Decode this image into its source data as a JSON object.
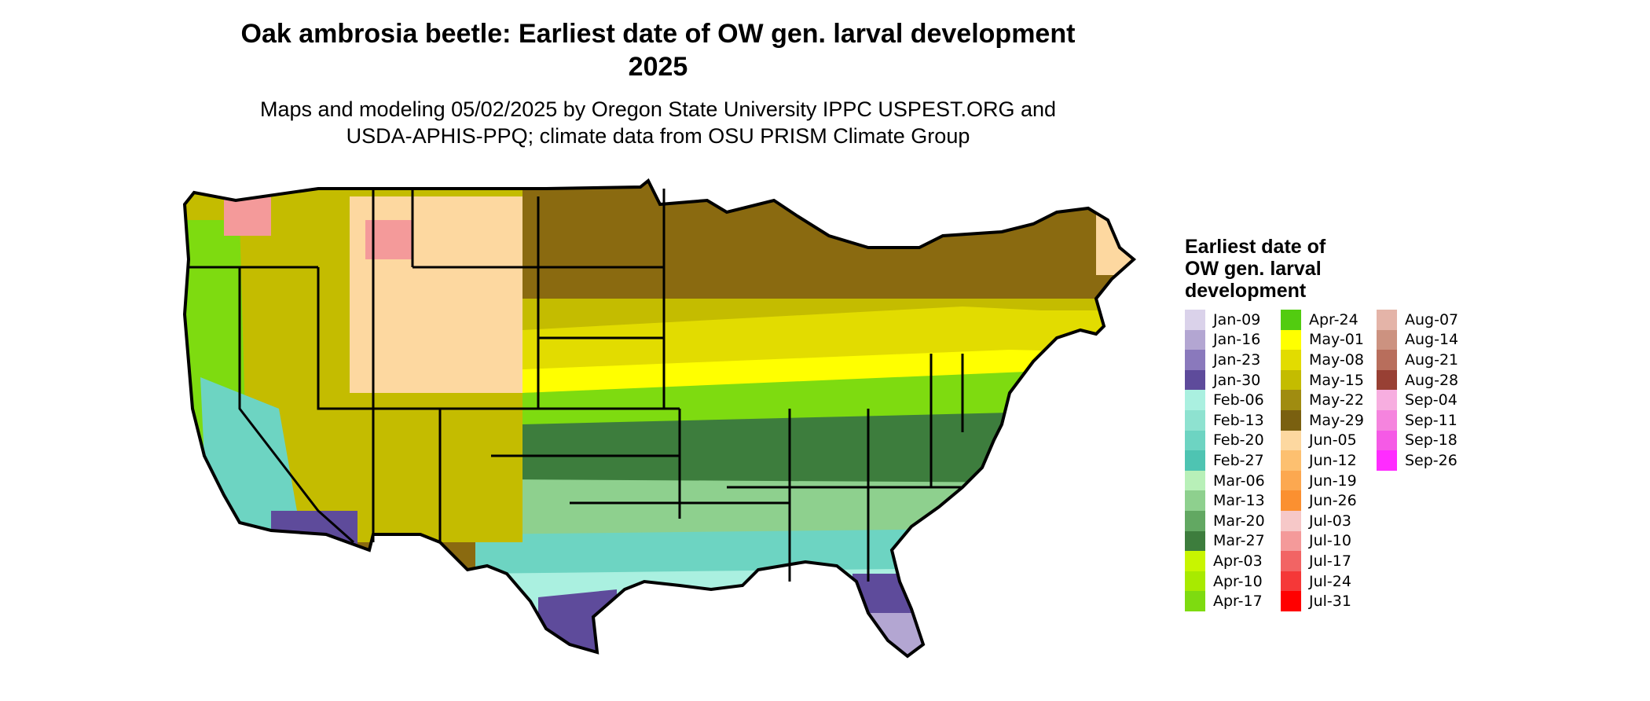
{
  "title_line1": "Oak ambrosia beetle: Earliest date of OW gen. larval development",
  "title_line2": "2025",
  "subtitle_line1": "Maps and modeling 05/02/2025 by Oregon State University IPPC USPEST.ORG and",
  "subtitle_line2": "USDA-APHIS-PPQ; climate data from OSU PRISM Climate Group",
  "legend": {
    "title": "Earliest date of OW gen. larval development",
    "items": [
      {
        "label": "Jan-09",
        "color": "#dad2ea"
      },
      {
        "label": "Jan-16",
        "color": "#b3a6d2"
      },
      {
        "label": "Jan-23",
        "color": "#8a79bc"
      },
      {
        "label": "Jan-30",
        "color": "#5e4b9b"
      },
      {
        "label": "Feb-06",
        "color": "#aaf0e0"
      },
      {
        "label": "Feb-13",
        "color": "#8ee2d0"
      },
      {
        "label": "Feb-20",
        "color": "#6dd4c2"
      },
      {
        "label": "Feb-27",
        "color": "#4ec4b2"
      },
      {
        "label": "Mar-06",
        "color": "#b8f0b8"
      },
      {
        "label": "Mar-13",
        "color": "#8ed08e"
      },
      {
        "label": "Mar-20",
        "color": "#62a862"
      },
      {
        "label": "Mar-27",
        "color": "#3d7d3d"
      },
      {
        "label": "Apr-03",
        "color": "#c8f500"
      },
      {
        "label": "Apr-10",
        "color": "#a8ea00"
      },
      {
        "label": "Apr-17",
        "color": "#7edb10"
      },
      {
        "label": "Apr-24",
        "color": "#52cc10"
      },
      {
        "label": "May-01",
        "color": "#ffff00"
      },
      {
        "label": "May-08",
        "color": "#e2dc00"
      },
      {
        "label": "May-15",
        "color": "#c4bc00"
      },
      {
        "label": "May-22",
        "color": "#a08c10"
      },
      {
        "label": "May-29",
        "color": "#7a6010"
      },
      {
        "label": "Jun-05",
        "color": "#fdd8a0"
      },
      {
        "label": "Jun-12",
        "color": "#fdc070"
      },
      {
        "label": "Jun-19",
        "color": "#fca850"
      },
      {
        "label": "Jun-26",
        "color": "#fb9030"
      },
      {
        "label": "Jul-03",
        "color": "#f6c8c8"
      },
      {
        "label": "Jul-10",
        "color": "#f49a9a"
      },
      {
        "label": "Jul-17",
        "color": "#f26464"
      },
      {
        "label": "Jul-24",
        "color": "#f53838"
      },
      {
        "label": "Jul-31",
        "color": "#ff0000"
      },
      {
        "label": "Aug-07",
        "color": "#e4b4a8"
      },
      {
        "label": "Aug-14",
        "color": "#cc9280"
      },
      {
        "label": "Aug-21",
        "color": "#b86e5c"
      },
      {
        "label": "Aug-28",
        "color": "#984034"
      },
      {
        "label": "Sep-04",
        "color": "#f7aee0"
      },
      {
        "label": "Sep-11",
        "color": "#f584de"
      },
      {
        "label": "Sep-18",
        "color": "#f55ae6"
      },
      {
        "label": "Sep-26",
        "color": "#ff2cff"
      }
    ]
  },
  "map": {
    "outline_color": "#000000",
    "zones": [
      {
        "name": "north-cold",
        "color": "#8a6a10"
      },
      {
        "name": "north-mid",
        "color": "#c4bc00"
      },
      {
        "name": "may-band",
        "color": "#e2dc00"
      },
      {
        "name": "may01-band",
        "color": "#ffff00"
      },
      {
        "name": "april-band",
        "color": "#7edb10"
      },
      {
        "name": "march-band",
        "color": "#3d7d3d"
      },
      {
        "name": "mar13-band",
        "color": "#8ed08e"
      },
      {
        "name": "feb-band",
        "color": "#6dd4c2"
      },
      {
        "name": "feb06-band",
        "color": "#aaf0e0"
      },
      {
        "name": "jan-band",
        "color": "#5e4b9b"
      },
      {
        "name": "florida-jan",
        "color": "#b3a6d2"
      },
      {
        "name": "mountain-june",
        "color": "#fdd8a0"
      },
      {
        "name": "mountain-july",
        "color": "#f49a9a"
      },
      {
        "name": "maine-june",
        "color": "#fdc070"
      }
    ]
  }
}
